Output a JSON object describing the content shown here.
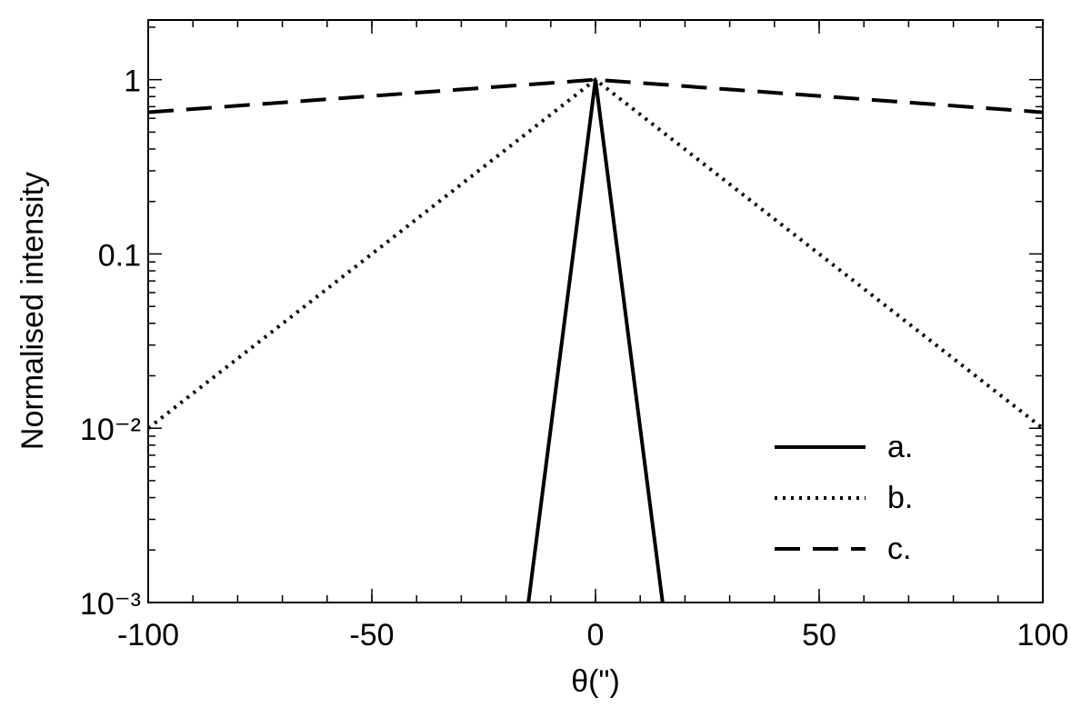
{
  "chart_data": {
    "type": "line",
    "x_label": "θ(\")",
    "y_label": "Normalised intensity",
    "xlim": [
      -100,
      100
    ],
    "xticks": [
      -100,
      -50,
      0,
      50,
      100
    ],
    "ylim": [
      0.001,
      2.2
    ],
    "log_y": true,
    "yticks": [
      {
        "value": 0.001,
        "label": "10⁻³"
      },
      {
        "value": 0.01,
        "label": "10⁻²"
      },
      0.1,
      1
    ],
    "legend": "lower right",
    "series": [
      {
        "name": "a.",
        "color": "#000000",
        "style": "solid",
        "x": [
          -15,
          0,
          15
        ],
        "values": [
          0.001,
          1,
          0.001
        ]
      },
      {
        "name": "b.",
        "color": "#000000",
        "style": "dotted",
        "x": [
          -100,
          0,
          100
        ],
        "values": [
          0.01,
          1,
          0.01
        ]
      },
      {
        "name": "c.",
        "color": "#000000",
        "style": "dashed",
        "x": [
          -100,
          0,
          100
        ],
        "values": [
          0.65,
          1,
          0.65
        ]
      }
    ]
  }
}
